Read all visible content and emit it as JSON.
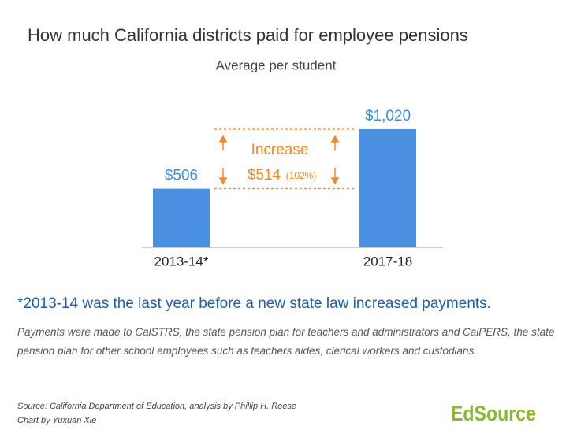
{
  "chart_data": {
    "type": "bar",
    "title": "How much California districts paid for employee pensions",
    "subtitle": "Average per student",
    "categories": [
      "2013-14*",
      "2017-18"
    ],
    "values": [
      506,
      1020
    ],
    "value_labels": [
      "$506",
      "$1,020"
    ],
    "color": "#4a8fe0",
    "ylim": [
      0,
      1200
    ],
    "annotation": {
      "label": "Increase",
      "amount": "$514",
      "percent": "(102%)"
    },
    "footnote": "*2013-14 was the last year before a new state law increased payments.",
    "note": "Payments were made to CalSTRS, the state pension plan for teachers and administrators and CalPERS, the state pension plan for other school employees such as teachers aides, clerical workers and custodians.",
    "source": "Source: California Department of Education, analysis by Phillip H. Reese",
    "credit": "Chart by Yuxuan Xie",
    "logo": "EdSource"
  }
}
